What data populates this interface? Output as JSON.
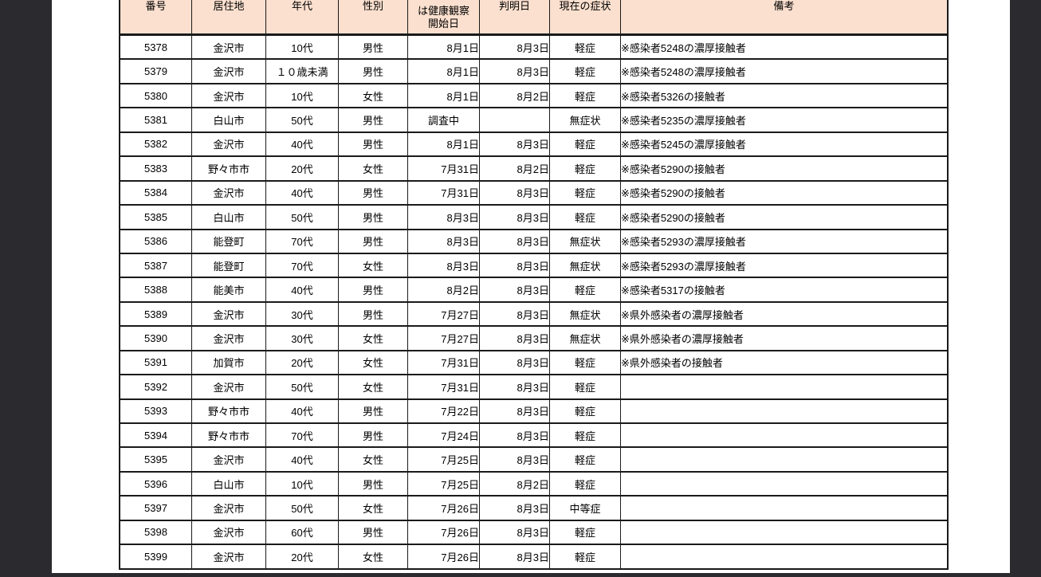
{
  "viewer": {
    "background_color": "#2b2b2f",
    "page_color": "#ffffff"
  },
  "table": {
    "header_bg_color": "#fbe0cf",
    "border_color": "#1a1a1a",
    "columns": [
      "番号",
      "居住地",
      "年代",
      "性別",
      "は健康観察\n開始日",
      "判明日",
      "現在の症状",
      "備考"
    ],
    "rows": [
      [
        "5378",
        "金沢市",
        "10代",
        "男性",
        "8月1日",
        "8月3日",
        "軽症",
        "※感染者5248の濃厚接触者"
      ],
      [
        "5379",
        "金沢市",
        "１０歳未満",
        "男性",
        "8月1日",
        "8月3日",
        "軽症",
        "※感染者5248の濃厚接触者"
      ],
      [
        "5380",
        "金沢市",
        "10代",
        "女性",
        "8月1日",
        "8月2日",
        "軽症",
        "※感染者5326の接触者"
      ],
      [
        "5381",
        "白山市",
        "50代",
        "男性",
        "調査中",
        "",
        "無症状",
        "※感染者5235の濃厚接触者"
      ],
      [
        "5382",
        "金沢市",
        "40代",
        "男性",
        "8月1日",
        "8月3日",
        "軽症",
        "※感染者5245の濃厚接触者"
      ],
      [
        "5383",
        "野々市市",
        "20代",
        "女性",
        "7月31日",
        "8月2日",
        "軽症",
        "※感染者5290の接触者"
      ],
      [
        "5384",
        "金沢市",
        "40代",
        "男性",
        "7月31日",
        "8月3日",
        "軽症",
        "※感染者5290の接触者"
      ],
      [
        "5385",
        "白山市",
        "50代",
        "男性",
        "8月3日",
        "8月3日",
        "軽症",
        "※感染者5290の接触者"
      ],
      [
        "5386",
        "能登町",
        "70代",
        "男性",
        "8月3日",
        "8月3日",
        "無症状",
        "※感染者5293の濃厚接触者"
      ],
      [
        "5387",
        "能登町",
        "70代",
        "女性",
        "8月3日",
        "8月3日",
        "無症状",
        "※感染者5293の濃厚接触者"
      ],
      [
        "5388",
        "能美市",
        "40代",
        "男性",
        "8月2日",
        "8月3日",
        "軽症",
        "※感染者5317の接触者"
      ],
      [
        "5389",
        "金沢市",
        "30代",
        "男性",
        "7月27日",
        "8月3日",
        "無症状",
        "※県外感染者の濃厚接触者"
      ],
      [
        "5390",
        "金沢市",
        "30代",
        "女性",
        "7月27日",
        "8月3日",
        "無症状",
        "※県外感染者の濃厚接触者"
      ],
      [
        "5391",
        "加賀市",
        "20代",
        "女性",
        "7月31日",
        "8月3日",
        "軽症",
        "※県外感染者の接触者"
      ],
      [
        "5392",
        "金沢市",
        "50代",
        "女性",
        "7月31日",
        "8月3日",
        "軽症",
        ""
      ],
      [
        "5393",
        "野々市市",
        "40代",
        "男性",
        "7月22日",
        "8月3日",
        "軽症",
        ""
      ],
      [
        "5394",
        "野々市市",
        "70代",
        "男性",
        "7月24日",
        "8月3日",
        "軽症",
        ""
      ],
      [
        "5395",
        "金沢市",
        "40代",
        "女性",
        "7月25日",
        "8月3日",
        "軽症",
        ""
      ],
      [
        "5396",
        "白山市",
        "10代",
        "男性",
        "7月25日",
        "8月2日",
        "軽症",
        ""
      ],
      [
        "5397",
        "金沢市",
        "50代",
        "女性",
        "7月26日",
        "8月3日",
        "中等症",
        ""
      ],
      [
        "5398",
        "金沢市",
        "60代",
        "男性",
        "7月26日",
        "8月3日",
        "軽症",
        ""
      ],
      [
        "5399",
        "金沢市",
        "20代",
        "女性",
        "7月26日",
        "8月3日",
        "軽症",
        ""
      ]
    ]
  }
}
